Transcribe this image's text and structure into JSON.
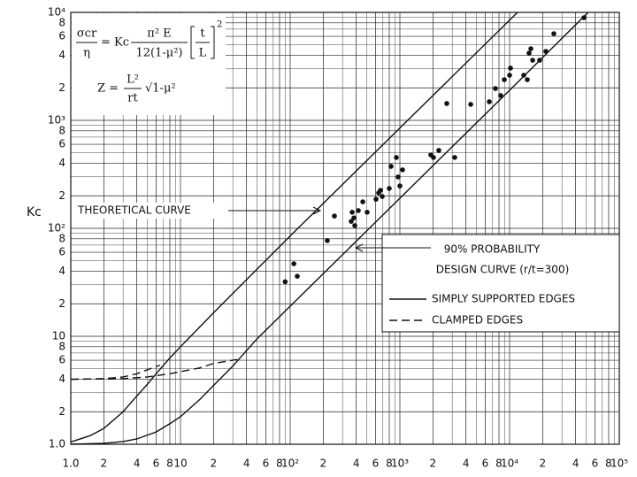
{
  "chart_data": {
    "type": "line",
    "y_label": "Kc",
    "log_x": true,
    "log_y": true,
    "grid": true,
    "xlim": [
      1,
      100000
    ],
    "ylim": [
      1,
      10000
    ],
    "xticks": [
      {
        "value": 1,
        "label": "1.0"
      },
      2,
      4,
      6,
      8,
      10,
      {
        "value": 20,
        "label": "2"
      },
      {
        "value": 40,
        "label": "4"
      },
      {
        "value": 60,
        "label": "6"
      },
      {
        "value": 80,
        "label": "8"
      },
      {
        "value": 100,
        "label": "10²"
      },
      {
        "value": 200,
        "label": "2"
      },
      {
        "value": 400,
        "label": "4"
      },
      {
        "value": 600,
        "label": "6"
      },
      {
        "value": 800,
        "label": "8"
      },
      {
        "value": 1000,
        "label": "10³"
      },
      {
        "value": 2000,
        "label": "2"
      },
      {
        "value": 4000,
        "label": "4"
      },
      {
        "value": 6000,
        "label": "6"
      },
      {
        "value": 8000,
        "label": "8"
      },
      {
        "value": 10000,
        "label": "10⁴"
      },
      {
        "value": 20000,
        "label": "2"
      },
      {
        "value": 40000,
        "label": "4"
      },
      {
        "value": 60000,
        "label": "6"
      },
      {
        "value": 80000,
        "label": "8"
      },
      {
        "value": 100000,
        "label": "10⁵"
      }
    ],
    "yticks": [
      {
        "value": 1,
        "label": "1.0"
      },
      2,
      4,
      6,
      8,
      10,
      {
        "value": 20,
        "label": "2"
      },
      {
        "value": 40,
        "label": "4"
      },
      {
        "value": 60,
        "label": "6"
      },
      {
        "value": 80,
        "label": "8"
      },
      {
        "value": 100,
        "label": "10²"
      },
      {
        "value": 200,
        "label": "2"
      },
      {
        "value": 400,
        "label": "4"
      },
      {
        "value": 600,
        "label": "6"
      },
      {
        "value": 800,
        "label": "8"
      },
      {
        "value": 1000,
        "label": "10³"
      },
      {
        "value": 2000,
        "label": "2"
      },
      {
        "value": 4000,
        "label": "4"
      },
      {
        "value": 6000,
        "label": "6"
      },
      {
        "value": 8000,
        "label": "8"
      },
      {
        "value": 10000,
        "label": "10⁴"
      }
    ],
    "xminor": [
      3,
      5,
      7,
      9,
      30,
      50,
      70,
      90,
      300,
      500,
      700,
      900,
      3000,
      5000,
      7000,
      9000,
      30000,
      50000,
      70000,
      90000
    ],
    "yminor": [
      3,
      5,
      7,
      9,
      30,
      50,
      70,
      90,
      300,
      500,
      700,
      900,
      3000,
      5000,
      7000,
      9000
    ],
    "curves": [
      {
        "dash": false,
        "x": [
          1,
          1.5,
          2,
          3,
          4,
          5,
          6,
          8,
          10,
          20,
          50,
          100,
          1000,
          11800
        ],
        "y": [
          1.05,
          1.2,
          1.4,
          2.0,
          2.8,
          3.6,
          4.5,
          6.3,
          8,
          16.5,
          42,
          85,
          850,
          10000
        ]
      },
      {
        "dash": true,
        "x": [
          1,
          2,
          3,
          4,
          5,
          6.5
        ],
        "y": [
          4,
          4.05,
          4.2,
          4.5,
          4.9,
          5.4
        ]
      },
      {
        "dash": false,
        "x": [
          1,
          2,
          3,
          4,
          6,
          8,
          10,
          15,
          20,
          30,
          50,
          100,
          1000,
          10000,
          52000
        ],
        "y": [
          1.0,
          1.02,
          1.06,
          1.12,
          1.3,
          1.55,
          1.8,
          2.6,
          3.5,
          5.3,
          9.5,
          19,
          190,
          1900,
          10000
        ]
      },
      {
        "dash": true,
        "x": [
          1,
          3,
          5,
          8,
          10,
          15,
          20,
          33
        ],
        "y": [
          4,
          4.05,
          4.2,
          4.5,
          4.7,
          5.1,
          5.6,
          6.1
        ]
      }
    ],
    "points": {
      "x": [
        90,
        108,
        116,
        253,
        218,
        367,
        381,
        360,
        388,
        418,
        459,
        503,
        606,
        640,
        665,
        690,
        800,
        830,
        963,
        1000,
        929,
        1057,
        1914,
        2024,
        2263,
        3162,
        2675,
        4420,
        6530,
        7430,
        8300,
        8950,
        10190,
        10000,
        13460,
        14500,
        15050,
        15620,
        16220,
        18800,
        21400,
        25300,
        47600
      ],
      "y": [
        32,
        47,
        36,
        130,
        77,
        141,
        125,
        116,
        106,
        146,
        176,
        141,
        186,
        213,
        225,
        197,
        234,
        375,
        299,
        247,
        453,
        348,
        479,
        453,
        527,
        453,
        1432,
        1406,
        1487,
        1972,
        1698,
        2383,
        3048,
        2618,
        2618,
        2383,
        4198,
        4613,
        3606,
        3606,
        4357,
        6350,
        8930
      ]
    },
    "legend": [
      {
        "name": "SIMPLY SUPPORTED EDGES",
        "dash": false
      },
      {
        "name": "CLAMPED EDGES",
        "dash": true
      }
    ],
    "annotations": {
      "theoretical": "THEORETICAL CURVE",
      "probability": "90% PROBABILITY",
      "design": "DESIGN CURVE (r/t=300)"
    },
    "equation": {
      "lhs_num": "σcr",
      "lhs_den": "η",
      "mid": "= Kc",
      "num": "π² E",
      "den": "12(1-μ²)",
      "t": "t",
      "L": "L",
      "exp": "2",
      "z_lhs": "Z =",
      "z_num": "L²",
      "z_den": "rt",
      "z_root": "√1-μ²"
    }
  }
}
